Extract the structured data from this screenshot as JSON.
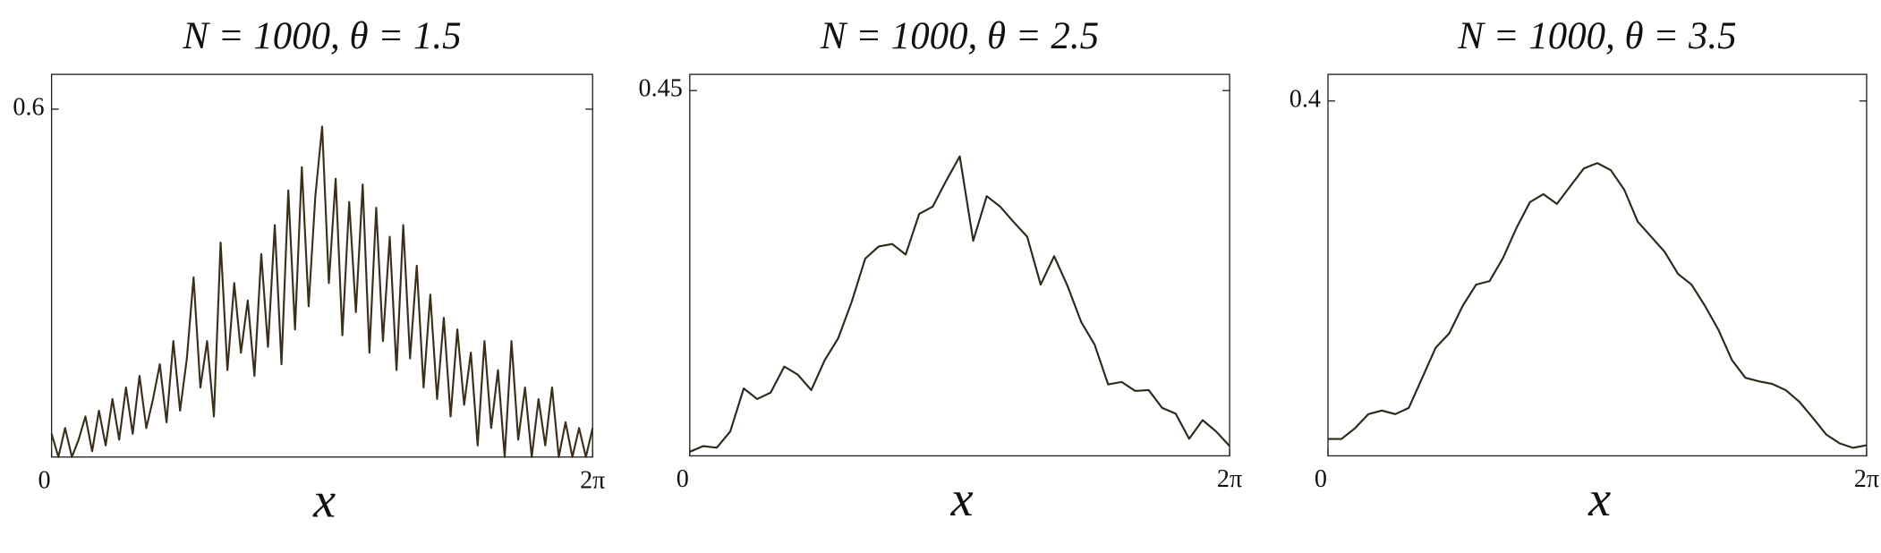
{
  "chart_data": [
    {
      "type": "line",
      "title": "N = 1000, θ = 1.5",
      "xlabel": "x",
      "color": "#3a2f1a",
      "xlim": [
        0,
        6.283
      ],
      "ylim": [
        0,
        0.66
      ],
      "xticks": [
        0,
        {
          "value": 6.283,
          "label": "2π"
        }
      ],
      "yticks": [
        0.6
      ],
      "x": [
        0,
        0.079,
        0.157,
        0.236,
        0.314,
        0.393,
        0.471,
        0.55,
        0.628,
        0.707,
        0.785,
        0.864,
        0.942,
        1.021,
        1.1,
        1.178,
        1.257,
        1.335,
        1.414,
        1.492,
        1.571,
        1.649,
        1.728,
        1.806,
        1.885,
        1.963,
        2.042,
        2.121,
        2.199,
        2.278,
        2.356,
        2.435,
        2.513,
        2.592,
        2.67,
        2.749,
        2.827,
        2.906,
        2.985,
        3.063,
        3.142,
        3.22,
        3.299,
        3.377,
        3.456,
        3.534,
        3.613,
        3.691,
        3.77,
        3.848,
        3.927,
        4.006,
        4.084,
        4.163,
        4.241,
        4.32,
        4.398,
        4.477,
        4.555,
        4.634,
        4.712,
        4.791,
        4.869,
        4.948,
        5.027,
        5.105,
        5.184,
        5.262,
        5.341,
        5.419,
        5.498,
        5.576,
        5.655,
        5.733,
        5.812,
        5.89,
        5.969,
        6.048,
        6.126,
        6.205,
        6.283
      ],
      "values": [
        0.04,
        0.0,
        0.05,
        0.0,
        0.03,
        0.07,
        0.01,
        0.08,
        0.02,
        0.1,
        0.03,
        0.12,
        0.04,
        0.14,
        0.05,
        0.1,
        0.16,
        0.06,
        0.2,
        0.08,
        0.17,
        0.31,
        0.12,
        0.2,
        0.07,
        0.37,
        0.15,
        0.3,
        0.18,
        0.27,
        0.14,
        0.35,
        0.19,
        0.4,
        0.16,
        0.46,
        0.22,
        0.5,
        0.26,
        0.45,
        0.57,
        0.3,
        0.48,
        0.21,
        0.44,
        0.25,
        0.47,
        0.18,
        0.43,
        0.2,
        0.38,
        0.15,
        0.4,
        0.17,
        0.33,
        0.12,
        0.28,
        0.1,
        0.24,
        0.07,
        0.22,
        0.09,
        0.18,
        0.02,
        0.2,
        0.05,
        0.15,
        0.0,
        0.2,
        0.03,
        0.12,
        0.0,
        0.1,
        0.02,
        0.12,
        0.0,
        0.06,
        0.0,
        0.05,
        0.0,
        0.05
      ]
    },
    {
      "type": "line",
      "title": "N = 1000, θ = 2.5",
      "xlabel": "x",
      "color": "#2a2a1a",
      "xlim": [
        0,
        6.283
      ],
      "ylim": [
        0,
        0.47
      ],
      "xticks": [
        0,
        {
          "value": 6.283,
          "label": "2π"
        }
      ],
      "yticks": [
        0.45
      ],
      "x": [
        0,
        0.157,
        0.314,
        0.471,
        0.628,
        0.785,
        0.942,
        1.1,
        1.257,
        1.414,
        1.571,
        1.728,
        1.885,
        2.042,
        2.199,
        2.356,
        2.513,
        2.67,
        2.827,
        2.985,
        3.142,
        3.299,
        3.456,
        3.613,
        3.77,
        3.927,
        4.084,
        4.241,
        4.398,
        4.555,
        4.712,
        4.869,
        5.027,
        5.184,
        5.341,
        5.498,
        5.655,
        5.812,
        5.969,
        6.126,
        6.283
      ],
      "values": [
        0.005,
        0.012,
        0.01,
        0.03,
        0.083,
        0.07,
        0.078,
        0.11,
        0.1,
        0.081,
        0.118,
        0.145,
        0.19,
        0.243,
        0.258,
        0.261,
        0.248,
        0.298,
        0.307,
        0.339,
        0.369,
        0.265,
        0.32,
        0.307,
        0.288,
        0.27,
        0.211,
        0.246,
        0.209,
        0.165,
        0.137,
        0.088,
        0.091,
        0.08,
        0.081,
        0.059,
        0.052,
        0.021,
        0.044,
        0.03,
        0.012
      ]
    },
    {
      "type": "line",
      "title": "N = 1000, θ = 3.5",
      "xlabel": "x",
      "color": "#2a2a1a",
      "xlim": [
        0,
        6.283
      ],
      "ylim": [
        0,
        0.43
      ],
      "xticks": [
        0,
        {
          "value": 6.283,
          "label": "2π"
        }
      ],
      "yticks": [
        0.4
      ],
      "x": [
        0,
        0.157,
        0.314,
        0.471,
        0.628,
        0.785,
        0.942,
        1.1,
        1.257,
        1.414,
        1.571,
        1.728,
        1.885,
        2.042,
        2.199,
        2.356,
        2.513,
        2.67,
        2.827,
        2.985,
        3.142,
        3.299,
        3.456,
        3.613,
        3.77,
        3.927,
        4.084,
        4.241,
        4.398,
        4.555,
        4.712,
        4.869,
        5.027,
        5.184,
        5.341,
        5.498,
        5.655,
        5.812,
        5.969,
        6.126,
        6.283
      ],
      "values": [
        0.019,
        0.019,
        0.031,
        0.047,
        0.051,
        0.047,
        0.054,
        0.088,
        0.122,
        0.138,
        0.169,
        0.193,
        0.197,
        0.223,
        0.257,
        0.286,
        0.295,
        0.284,
        0.304,
        0.324,
        0.33,
        0.322,
        0.3,
        0.264,
        0.247,
        0.23,
        0.205,
        0.193,
        0.169,
        0.142,
        0.108,
        0.088,
        0.084,
        0.081,
        0.074,
        0.061,
        0.043,
        0.024,
        0.014,
        0.009,
        0.012
      ]
    }
  ]
}
